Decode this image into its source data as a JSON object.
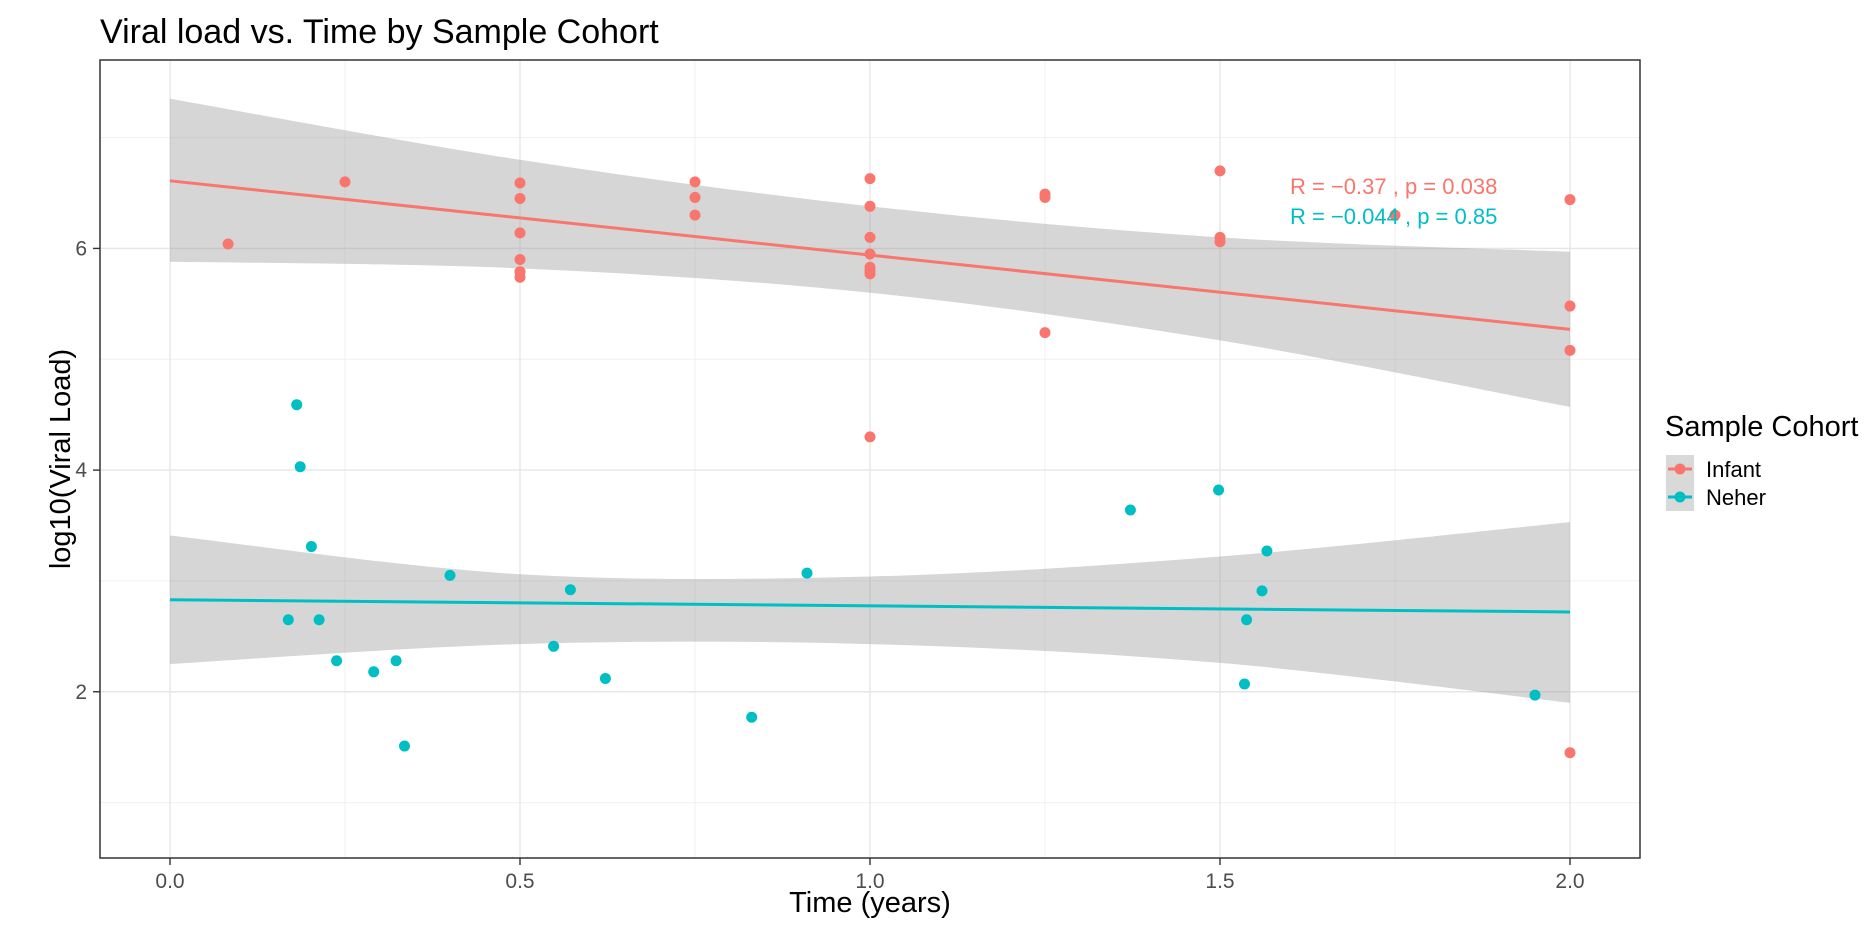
{
  "chart_data": {
    "type": "scatter",
    "title": "Viral load vs. Time by Sample Cohort",
    "xlabel": "Time (years)",
    "ylabel": "log10(Viral Load)",
    "xlim": [
      -0.1,
      2.1
    ],
    "ylim": [
      0.5,
      7.7
    ],
    "x_ticks": [
      0.0,
      0.5,
      1.0,
      1.5,
      2.0
    ],
    "x_tick_labels": [
      "0.0",
      "0.5",
      "1.0",
      "1.5",
      "2.0"
    ],
    "y_ticks": [
      2,
      4,
      6
    ],
    "y_tick_labels": [
      "2",
      "4",
      "6"
    ],
    "grid": true,
    "legend": {
      "title": "Sample Cohort",
      "position": "right"
    },
    "series": [
      {
        "name": "Infant",
        "color": "#F8766D",
        "points": [
          {
            "x": 0.083,
            "y": 6.04
          },
          {
            "x": 0.25,
            "y": 6.6
          },
          {
            "x": 0.5,
            "y": 6.59
          },
          {
            "x": 0.5,
            "y": 6.45
          },
          {
            "x": 0.5,
            "y": 6.14
          },
          {
            "x": 0.5,
            "y": 5.9
          },
          {
            "x": 0.5,
            "y": 5.79
          },
          {
            "x": 0.5,
            "y": 5.74
          },
          {
            "x": 0.75,
            "y": 6.6
          },
          {
            "x": 0.75,
            "y": 6.46
          },
          {
            "x": 0.75,
            "y": 6.3
          },
          {
            "x": 1.0,
            "y": 6.63
          },
          {
            "x": 1.0,
            "y": 6.38
          },
          {
            "x": 1.0,
            "y": 6.1
          },
          {
            "x": 1.0,
            "y": 5.95
          },
          {
            "x": 1.0,
            "y": 5.83
          },
          {
            "x": 1.0,
            "y": 5.8
          },
          {
            "x": 1.0,
            "y": 5.77
          },
          {
            "x": 1.0,
            "y": 4.3
          },
          {
            "x": 1.25,
            "y": 6.49
          },
          {
            "x": 1.25,
            "y": 6.46
          },
          {
            "x": 1.25,
            "y": 5.24
          },
          {
            "x": 1.5,
            "y": 6.7
          },
          {
            "x": 1.5,
            "y": 6.1
          },
          {
            "x": 1.5,
            "y": 6.06
          },
          {
            "x": 1.75,
            "y": 6.3
          },
          {
            "x": 2.0,
            "y": 6.44
          },
          {
            "x": 2.0,
            "y": 5.48
          },
          {
            "x": 2.0,
            "y": 5.08
          },
          {
            "x": 2.0,
            "y": 1.45
          }
        ],
        "fit": {
          "x0": 0.0,
          "y0": 6.61,
          "x1": 2.0,
          "y1": 5.27
        },
        "band_upper": [
          [
            0.0,
            7.35
          ],
          [
            0.5,
            6.8
          ],
          [
            1.0,
            6.38
          ],
          [
            1.5,
            6.1
          ],
          [
            2.0,
            5.97
          ]
        ],
        "band_lower": [
          [
            0.0,
            5.88
          ],
          [
            0.5,
            5.82
          ],
          [
            1.0,
            5.6
          ],
          [
            1.5,
            5.17
          ],
          [
            2.0,
            4.57
          ]
        ],
        "stat_label": "R = −0.37 , p = 0.038"
      },
      {
        "name": "Neher",
        "color": "#00BFC4",
        "points": [
          {
            "x": 0.181,
            "y": 4.59
          },
          {
            "x": 0.186,
            "y": 4.03
          },
          {
            "x": 0.202,
            "y": 3.31
          },
          {
            "x": 0.169,
            "y": 2.65
          },
          {
            "x": 0.213,
            "y": 2.65
          },
          {
            "x": 0.238,
            "y": 2.28
          },
          {
            "x": 0.291,
            "y": 2.18
          },
          {
            "x": 0.323,
            "y": 2.28
          },
          {
            "x": 0.335,
            "y": 1.51
          },
          {
            "x": 0.4,
            "y": 3.05
          },
          {
            "x": 0.572,
            "y": 2.92
          },
          {
            "x": 0.548,
            "y": 2.41
          },
          {
            "x": 0.622,
            "y": 2.12
          },
          {
            "x": 0.831,
            "y": 1.77
          },
          {
            "x": 0.91,
            "y": 3.07
          },
          {
            "x": 1.372,
            "y": 3.64
          },
          {
            "x": 1.498,
            "y": 3.82
          },
          {
            "x": 1.567,
            "y": 3.27
          },
          {
            "x": 1.56,
            "y": 2.91
          },
          {
            "x": 1.538,
            "y": 2.65
          },
          {
            "x": 1.535,
            "y": 2.07
          },
          {
            "x": 1.95,
            "y": 1.97
          }
        ],
        "fit": {
          "x0": 0.0,
          "y0": 2.83,
          "x1": 2.0,
          "y1": 2.72
        },
        "band_upper": [
          [
            0.0,
            3.41
          ],
          [
            0.5,
            3.06
          ],
          [
            1.0,
            3.04
          ],
          [
            1.5,
            3.22
          ],
          [
            2.0,
            3.53
          ]
        ],
        "band_lower": [
          [
            0.0,
            2.25
          ],
          [
            0.5,
            2.43
          ],
          [
            1.0,
            2.43
          ],
          [
            1.5,
            2.26
          ],
          [
            2.0,
            1.9
          ]
        ],
        "stat_label": "R = −0.044 , p = 0.85"
      }
    ]
  }
}
